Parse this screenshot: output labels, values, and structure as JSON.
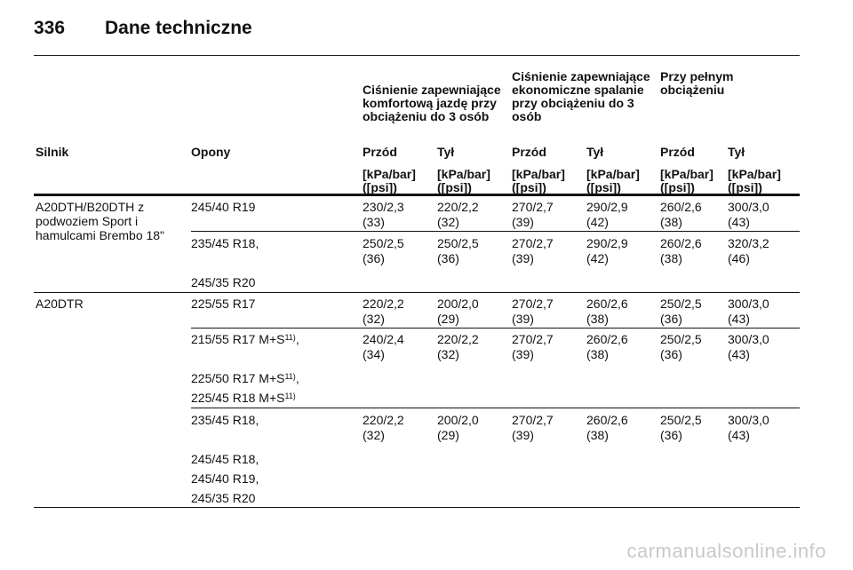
{
  "page": {
    "number": "336",
    "title": "Dane techniczne"
  },
  "groups": [
    "Ciśnienie zapewniające komfortową jazdę przy obciążeniu do 3 osób",
    "Ciśnienie zapewniające ekonomiczne spalanie przy obciążeniu do 3 osób",
    "Przy pełnym obciążeniu"
  ],
  "columns": {
    "engine": "Silnik",
    "tyres": "Opony",
    "axles": [
      "Przód",
      "Tył",
      "Przód",
      "Tył",
      "Przód",
      "Tył"
    ],
    "unit_line1": "[kPa/bar]",
    "unit_line2": "([psi])"
  },
  "rows": [
    {
      "engine": [
        "A20DTH/B20DTH z",
        "podwoziem Sport i",
        "hamulcami Brembo 18\""
      ],
      "tyres": [
        "245/40 R19"
      ],
      "values": [
        [
          "230/2,3",
          "(33)"
        ],
        [
          "220/2,2",
          "(32)"
        ],
        [
          "270/2,7",
          "(39)"
        ],
        [
          "290/2,9",
          "(42)"
        ],
        [
          "260/2,6",
          "(38)"
        ],
        [
          "300/3,0",
          "(43)"
        ]
      ]
    },
    {
      "engine": [],
      "tyres": [
        "235/45 R18,",
        "245/35 R20"
      ],
      "values": [
        [
          "250/2,5",
          "(36)"
        ],
        [
          "250/2,5",
          "(36)"
        ],
        [
          "270/2,7",
          "(39)"
        ],
        [
          "290/2,9",
          "(42)"
        ],
        [
          "260/2,6",
          "(38)"
        ],
        [
          "320/3,2",
          "(46)"
        ]
      ]
    },
    {
      "engine": [
        "A20DTR"
      ],
      "tyres": [
        "225/55 R17"
      ],
      "values": [
        [
          "220/2,2",
          "(32)"
        ],
        [
          "200/2,0",
          "(29)"
        ],
        [
          "270/2,7",
          "(39)"
        ],
        [
          "260/2,6",
          "(38)"
        ],
        [
          "250/2,5",
          "(36)"
        ],
        [
          "300/3,0",
          "(43)"
        ]
      ]
    },
    {
      "engine": [],
      "tyres": [
        "215/55 R17 M+S",
        "225/50 R17 M+S",
        "225/45 R18 M+S"
      ],
      "footnote": "11)",
      "values": [
        [
          "240/2,4",
          "(34)"
        ],
        [
          "220/2,2",
          "(32)"
        ],
        [
          "270/2,7",
          "(39)"
        ],
        [
          "260/2,6",
          "(38)"
        ],
        [
          "250/2,5",
          "(36)"
        ],
        [
          "300/3,0",
          "(43)"
        ]
      ]
    },
    {
      "engine": [],
      "tyres": [
        "235/45 R18,",
        "245/45 R18,",
        "245/40 R19,",
        "245/35 R20"
      ],
      "values": [
        [
          "220/2,2",
          "(32)"
        ],
        [
          "200/2,0",
          "(29)"
        ],
        [
          "270/2,7",
          "(39)"
        ],
        [
          "260/2,6",
          "(38)"
        ],
        [
          "250/2,5",
          "(36)"
        ],
        [
          "300/3,0",
          "(43)"
        ]
      ]
    }
  ],
  "watermark": "carmanualsonline.info"
}
